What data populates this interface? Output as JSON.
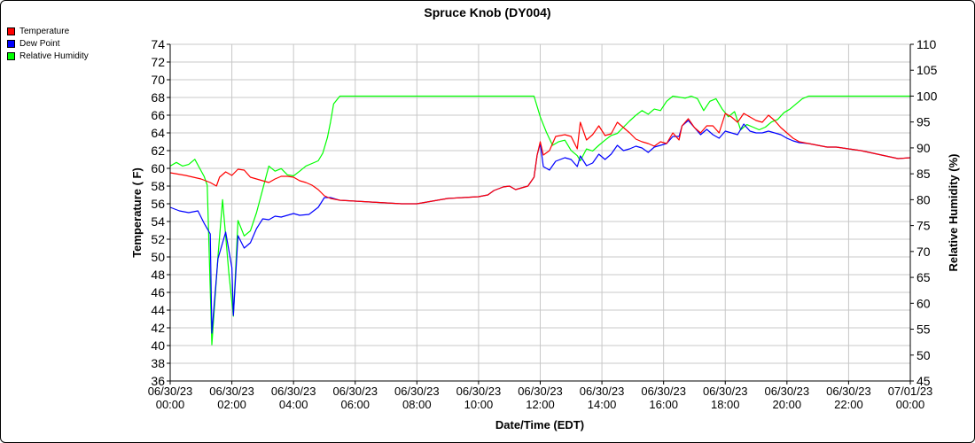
{
  "chart_data": {
    "type": "line",
    "title": "Spruce Knob (DY004)",
    "xlabel": "Date/Time (EDT)",
    "ylabel_left": "Temperature ( F)",
    "ylabel_right": "Relative Humidity (%)",
    "ylim_left": [
      36,
      74
    ],
    "ylim_right": [
      45,
      110
    ],
    "xlim_hours": [
      0,
      24
    ],
    "grid": true,
    "legend_placement": "top-left",
    "x_ticks": [
      {
        "hour": 0,
        "date": "06/30/23",
        "time": "00:00"
      },
      {
        "hour": 2,
        "date": "06/30/23",
        "time": "02:00"
      },
      {
        "hour": 4,
        "date": "06/30/23",
        "time": "04:00"
      },
      {
        "hour": 6,
        "date": "06/30/23",
        "time": "06:00"
      },
      {
        "hour": 8,
        "date": "06/30/23",
        "time": "08:00"
      },
      {
        "hour": 10,
        "date": "06/30/23",
        "time": "10:00"
      },
      {
        "hour": 12,
        "date": "06/30/23",
        "time": "12:00"
      },
      {
        "hour": 14,
        "date": "06/30/23",
        "time": "14:00"
      },
      {
        "hour": 16,
        "date": "06/30/23",
        "time": "16:00"
      },
      {
        "hour": 18,
        "date": "06/30/23",
        "time": "18:00"
      },
      {
        "hour": 20,
        "date": "06/30/23",
        "time": "20:00"
      },
      {
        "hour": 22,
        "date": "06/30/23",
        "time": "22:00"
      },
      {
        "hour": 24,
        "date": "07/01/23",
        "time": "00:00"
      }
    ],
    "y_ticks_left": [
      36,
      38,
      40,
      42,
      44,
      46,
      48,
      50,
      52,
      54,
      56,
      58,
      60,
      62,
      64,
      66,
      68,
      70,
      72,
      74
    ],
    "y_ticks_right": [
      45,
      50,
      55,
      60,
      65,
      70,
      75,
      80,
      85,
      90,
      95,
      100,
      105,
      110
    ],
    "series": [
      {
        "name": "Temperature",
        "color": "#ff0000",
        "axis": "left",
        "points": [
          [
            0,
            59.5
          ],
          [
            0.5,
            59.2
          ],
          [
            1,
            58.8
          ],
          [
            1.3,
            58.4
          ],
          [
            1.5,
            58.0
          ],
          [
            1.6,
            59.0
          ],
          [
            1.8,
            59.6
          ],
          [
            2.0,
            59.2
          ],
          [
            2.2,
            59.9
          ],
          [
            2.4,
            59.8
          ],
          [
            2.6,
            59.0
          ],
          [
            2.8,
            58.8
          ],
          [
            3.0,
            58.6
          ],
          [
            3.2,
            58.4
          ],
          [
            3.4,
            58.8
          ],
          [
            3.6,
            59.1
          ],
          [
            3.8,
            59.1
          ],
          [
            4.0,
            59.0
          ],
          [
            4.2,
            58.6
          ],
          [
            4.4,
            58.4
          ],
          [
            4.6,
            58.1
          ],
          [
            4.8,
            57.6
          ],
          [
            5.0,
            56.9
          ],
          [
            5.2,
            56.6
          ],
          [
            5.5,
            56.4
          ],
          [
            6.0,
            56.3
          ],
          [
            6.5,
            56.2
          ],
          [
            7.0,
            56.1
          ],
          [
            7.5,
            56.0
          ],
          [
            8.0,
            56.0
          ],
          [
            8.5,
            56.3
          ],
          [
            9.0,
            56.6
          ],
          [
            9.5,
            56.7
          ],
          [
            10.0,
            56.8
          ],
          [
            10.3,
            57.0
          ],
          [
            10.5,
            57.5
          ],
          [
            10.8,
            57.9
          ],
          [
            11.0,
            58.0
          ],
          [
            11.2,
            57.6
          ],
          [
            11.4,
            57.8
          ],
          [
            11.6,
            58.0
          ],
          [
            11.8,
            59.0
          ],
          [
            11.9,
            61.5
          ],
          [
            12.0,
            63.0
          ],
          [
            12.1,
            61.5
          ],
          [
            12.3,
            62.0
          ],
          [
            12.5,
            63.6
          ],
          [
            12.8,
            63.8
          ],
          [
            13.0,
            63.6
          ],
          [
            13.2,
            62.2
          ],
          [
            13.3,
            65.2
          ],
          [
            13.5,
            63.2
          ],
          [
            13.7,
            63.8
          ],
          [
            13.9,
            64.8
          ],
          [
            14.1,
            63.7
          ],
          [
            14.3,
            63.9
          ],
          [
            14.5,
            65.2
          ],
          [
            14.7,
            64.6
          ],
          [
            14.9,
            64.0
          ],
          [
            15.1,
            63.3
          ],
          [
            15.3,
            63.0
          ],
          [
            15.5,
            62.8
          ],
          [
            15.7,
            62.5
          ],
          [
            15.9,
            63.0
          ],
          [
            16.1,
            62.8
          ],
          [
            16.3,
            64.0
          ],
          [
            16.5,
            63.2
          ],
          [
            16.6,
            64.8
          ],
          [
            16.8,
            65.6
          ],
          [
            17.0,
            64.6
          ],
          [
            17.2,
            64.0
          ],
          [
            17.4,
            64.8
          ],
          [
            17.6,
            64.8
          ],
          [
            17.8,
            64.0
          ],
          [
            18.0,
            66.2
          ],
          [
            18.2,
            65.8
          ],
          [
            18.4,
            65.2
          ],
          [
            18.6,
            66.2
          ],
          [
            18.8,
            65.8
          ],
          [
            19.0,
            65.4
          ],
          [
            19.2,
            65.2
          ],
          [
            19.4,
            66.0
          ],
          [
            19.6,
            65.4
          ],
          [
            19.8,
            64.6
          ],
          [
            20.0,
            64.0
          ],
          [
            20.2,
            63.4
          ],
          [
            20.4,
            63.0
          ],
          [
            20.7,
            62.8
          ],
          [
            21.0,
            62.6
          ],
          [
            21.3,
            62.4
          ],
          [
            21.6,
            62.4
          ],
          [
            22.0,
            62.2
          ],
          [
            22.4,
            62.0
          ],
          [
            22.8,
            61.7
          ],
          [
            23.2,
            61.4
          ],
          [
            23.6,
            61.1
          ],
          [
            24.0,
            61.2
          ]
        ]
      },
      {
        "name": "Dew Point",
        "color": "#0000ff",
        "axis": "left",
        "points": [
          [
            0,
            55.6
          ],
          [
            0.3,
            55.2
          ],
          [
            0.6,
            55.0
          ],
          [
            0.9,
            55.2
          ],
          [
            1.1,
            53.8
          ],
          [
            1.3,
            52.6
          ],
          [
            1.35,
            41.4
          ],
          [
            1.55,
            49.8
          ],
          [
            1.8,
            52.8
          ],
          [
            2.0,
            48.8
          ],
          [
            2.05,
            43.4
          ],
          [
            2.2,
            52.4
          ],
          [
            2.4,
            51.0
          ],
          [
            2.6,
            51.6
          ],
          [
            2.8,
            53.2
          ],
          [
            3.0,
            54.3
          ],
          [
            3.2,
            54.2
          ],
          [
            3.4,
            54.6
          ],
          [
            3.6,
            54.5
          ],
          [
            3.8,
            54.7
          ],
          [
            4.0,
            54.9
          ],
          [
            4.2,
            54.7
          ],
          [
            4.5,
            54.8
          ],
          [
            4.8,
            55.6
          ],
          [
            5.0,
            56.7
          ],
          [
            5.2,
            56.7
          ],
          [
            5.5,
            56.4
          ],
          [
            6.0,
            56.3
          ],
          [
            6.5,
            56.2
          ],
          [
            7.0,
            56.1
          ],
          [
            7.5,
            56.0
          ],
          [
            8.0,
            56.0
          ],
          [
            8.5,
            56.3
          ],
          [
            9.0,
            56.6
          ],
          [
            9.5,
            56.7
          ],
          [
            10.0,
            56.8
          ],
          [
            10.3,
            57.0
          ],
          [
            10.5,
            57.5
          ],
          [
            10.8,
            57.9
          ],
          [
            11.0,
            58.0
          ],
          [
            11.2,
            57.6
          ],
          [
            11.4,
            57.8
          ],
          [
            11.6,
            58.0
          ],
          [
            11.8,
            59.0
          ],
          [
            11.9,
            61.5
          ],
          [
            12.0,
            62.8
          ],
          [
            12.1,
            60.2
          ],
          [
            12.3,
            59.8
          ],
          [
            12.5,
            60.8
          ],
          [
            12.8,
            61.2
          ],
          [
            13.0,
            61.0
          ],
          [
            13.2,
            60.2
          ],
          [
            13.3,
            61.4
          ],
          [
            13.5,
            60.3
          ],
          [
            13.7,
            60.6
          ],
          [
            13.9,
            61.6
          ],
          [
            14.1,
            61.0
          ],
          [
            14.3,
            61.6
          ],
          [
            14.5,
            62.6
          ],
          [
            14.7,
            62.0
          ],
          [
            14.9,
            62.2
          ],
          [
            15.1,
            62.5
          ],
          [
            15.3,
            62.3
          ],
          [
            15.5,
            61.8
          ],
          [
            15.7,
            62.4
          ],
          [
            15.9,
            62.6
          ],
          [
            16.1,
            62.8
          ],
          [
            16.3,
            63.6
          ],
          [
            16.5,
            63.6
          ],
          [
            16.6,
            64.8
          ],
          [
            16.8,
            65.4
          ],
          [
            17.0,
            64.6
          ],
          [
            17.2,
            63.8
          ],
          [
            17.4,
            64.4
          ],
          [
            17.6,
            63.8
          ],
          [
            17.8,
            63.4
          ],
          [
            18.0,
            64.2
          ],
          [
            18.2,
            64.0
          ],
          [
            18.4,
            63.8
          ],
          [
            18.6,
            65.0
          ],
          [
            18.8,
            64.2
          ],
          [
            19.0,
            64.0
          ],
          [
            19.2,
            64.0
          ],
          [
            19.4,
            64.2
          ],
          [
            19.6,
            64.0
          ],
          [
            19.8,
            63.8
          ],
          [
            20.0,
            63.4
          ],
          [
            20.2,
            63.1
          ],
          [
            20.4,
            62.9
          ],
          [
            20.7,
            62.8
          ],
          [
            21.0,
            62.6
          ],
          [
            21.3,
            62.4
          ],
          [
            21.6,
            62.4
          ],
          [
            22.0,
            62.2
          ],
          [
            22.4,
            62.0
          ],
          [
            22.8,
            61.7
          ],
          [
            23.2,
            61.4
          ],
          [
            23.6,
            61.1
          ],
          [
            24.0,
            61.2
          ]
        ]
      },
      {
        "name": "Relative Humidity",
        "color": "#00ff00",
        "axis": "right",
        "points": [
          [
            0,
            86.5
          ],
          [
            0.2,
            87.2
          ],
          [
            0.4,
            86.5
          ],
          [
            0.6,
            86.8
          ],
          [
            0.8,
            87.8
          ],
          [
            1.1,
            84.5
          ],
          [
            1.2,
            82.8
          ],
          [
            1.35,
            52.0
          ],
          [
            1.55,
            69.0
          ],
          [
            1.7,
            80.0
          ],
          [
            1.9,
            66.0
          ],
          [
            2.05,
            57.5
          ],
          [
            2.2,
            76.0
          ],
          [
            2.4,
            73.0
          ],
          [
            2.6,
            74.0
          ],
          [
            2.8,
            77.5
          ],
          [
            3.0,
            82.0
          ],
          [
            3.2,
            86.5
          ],
          [
            3.4,
            85.5
          ],
          [
            3.6,
            86.0
          ],
          [
            3.8,
            84.8
          ],
          [
            4.0,
            84.6
          ],
          [
            4.2,
            85.5
          ],
          [
            4.4,
            86.5
          ],
          [
            4.6,
            87.0
          ],
          [
            4.8,
            87.5
          ],
          [
            4.95,
            89.0
          ],
          [
            5.1,
            92.0
          ],
          [
            5.2,
            95.0
          ],
          [
            5.3,
            98.5
          ],
          [
            5.5,
            100.0
          ],
          [
            6.0,
            100.0
          ],
          [
            8.0,
            100.0
          ],
          [
            10.0,
            100.0
          ],
          [
            11.8,
            100.0
          ],
          [
            12.0,
            96.0
          ],
          [
            12.2,
            93.0
          ],
          [
            12.4,
            90.5
          ],
          [
            12.6,
            91.2
          ],
          [
            12.8,
            91.5
          ],
          [
            13.0,
            89.5
          ],
          [
            13.2,
            88.5
          ],
          [
            13.3,
            87.5
          ],
          [
            13.5,
            89.8
          ],
          [
            13.7,
            89.4
          ],
          [
            13.9,
            90.5
          ],
          [
            14.1,
            91.5
          ],
          [
            14.3,
            92.4
          ],
          [
            14.5,
            92.8
          ],
          [
            14.7,
            94.0
          ],
          [
            14.9,
            95.2
          ],
          [
            15.1,
            96.3
          ],
          [
            15.3,
            97.2
          ],
          [
            15.5,
            96.5
          ],
          [
            15.7,
            97.5
          ],
          [
            15.9,
            97.2
          ],
          [
            16.1,
            99.0
          ],
          [
            16.3,
            100.0
          ],
          [
            16.5,
            99.8
          ],
          [
            16.7,
            99.6
          ],
          [
            16.9,
            100.0
          ],
          [
            17.1,
            99.5
          ],
          [
            17.3,
            97.2
          ],
          [
            17.5,
            99.0
          ],
          [
            17.7,
            99.5
          ],
          [
            17.9,
            97.5
          ],
          [
            18.1,
            96.0
          ],
          [
            18.3,
            97.0
          ],
          [
            18.5,
            93.5
          ],
          [
            18.7,
            94.5
          ],
          [
            18.9,
            94.0
          ],
          [
            19.1,
            93.5
          ],
          [
            19.3,
            94.0
          ],
          [
            19.5,
            95.0
          ],
          [
            19.7,
            95.5
          ],
          [
            19.9,
            96.8
          ],
          [
            20.1,
            97.5
          ],
          [
            20.3,
            98.5
          ],
          [
            20.5,
            99.5
          ],
          [
            20.7,
            100.0
          ],
          [
            22.0,
            100.0
          ],
          [
            24.0,
            100.0
          ]
        ]
      }
    ]
  }
}
